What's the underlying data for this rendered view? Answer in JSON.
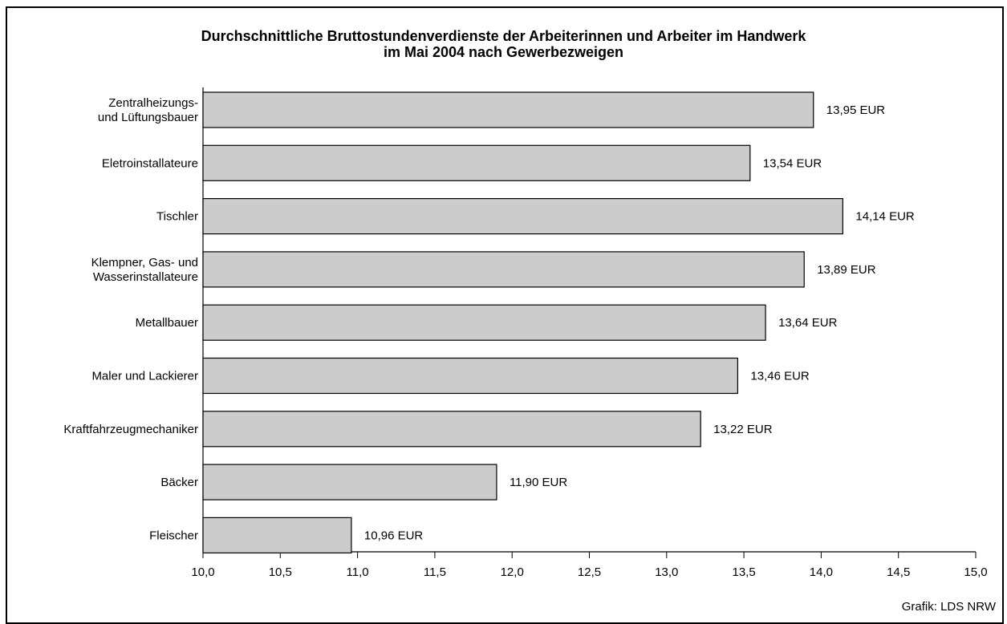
{
  "chart_data": {
    "type": "bar",
    "orientation": "horizontal",
    "title": [
      "Durchschnittliche Bruttostundenverdienste der Arbeiterinnen und Arbeiter im Handwerk",
      "im Mai 2004 nach Gewerbezweigen"
    ],
    "categories": [
      [
        "Zentralheizungs-",
        "und Lüftungsbauer"
      ],
      [
        "Eletroinstallateure"
      ],
      [
        "Tischler"
      ],
      [
        "Klempner, Gas- und",
        "Wasserinstallateure"
      ],
      [
        "Metallbauer"
      ],
      [
        "Maler und Lackierer"
      ],
      [
        "Kraftfahrzeugmechaniker"
      ],
      [
        "Bäcker"
      ],
      [
        "Fleischer"
      ]
    ],
    "values": [
      13.95,
      13.54,
      14.14,
      13.89,
      13.64,
      13.46,
      13.22,
      11.9,
      10.96
    ],
    "value_labels": [
      "13,95 EUR",
      "13,54 EUR",
      "14,14 EUR",
      "13,89 EUR",
      "13,64 EUR",
      "13,46 EUR",
      "13,22 EUR",
      "11,90 EUR",
      "10,96 EUR"
    ],
    "xlim": [
      10.0,
      15.0
    ],
    "xticks": [
      10.0,
      10.5,
      11.0,
      11.5,
      12.0,
      12.5,
      13.0,
      13.5,
      14.0,
      14.5,
      15.0
    ],
    "xtick_labels": [
      "10,0",
      "10,5",
      "11,0",
      "11,5",
      "12,0",
      "12,5",
      "13,0",
      "13,5",
      "14,0",
      "14,5",
      "15,0"
    ],
    "bar_color": "#cccccc",
    "grid": false,
    "legend": "none"
  },
  "source": "Grafik: LDS NRW"
}
